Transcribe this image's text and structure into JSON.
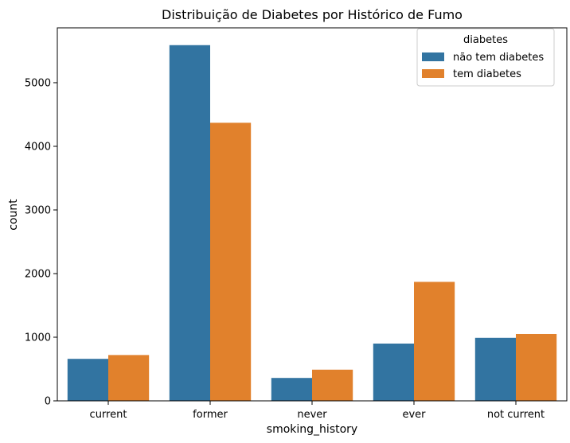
{
  "chart_data": {
    "type": "bar",
    "title": "Distribuição de Diabetes por Histórico de Fumo",
    "xlabel": "smoking_history",
    "ylabel": "count",
    "categories": [
      "current",
      "former",
      "never",
      "ever",
      "not current"
    ],
    "series": [
      {
        "name": "não tem diabetes",
        "color": "#3274a1",
        "values": [
          660,
          5590,
          360,
          900,
          990
        ]
      },
      {
        "name": "tem diabetes",
        "color": "#e1812c",
        "values": [
          720,
          4370,
          490,
          1870,
          1050
        ]
      }
    ],
    "ylim": [
      0,
      5862
    ],
    "yticks": [
      0,
      1000,
      2000,
      3000,
      4000,
      5000
    ],
    "grid": false,
    "legend": {
      "title": "diabetes",
      "placement": "top-right"
    }
  }
}
